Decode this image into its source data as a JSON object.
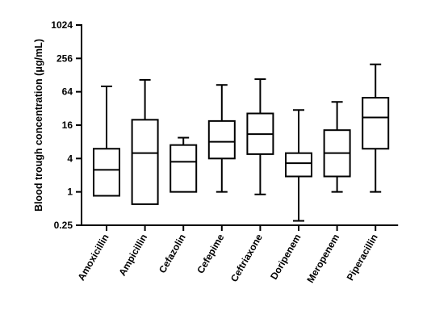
{
  "chart_data": {
    "type": "box",
    "title": "",
    "xlabel": "",
    "ylabel": "Blood trough concentration (μg/mL)",
    "yscale": "log2",
    "ylim": [
      0.25,
      1024
    ],
    "yticks": [
      0.25,
      1,
      4,
      16,
      64,
      256,
      1024
    ],
    "ytick_labels": [
      "0.25",
      "1",
      "4",
      "16",
      "64",
      "256",
      "1024"
    ],
    "grid": false,
    "legend": "none",
    "colors": {
      "stroke": "#000000",
      "fill": "#ffffff"
    },
    "categories": [
      "Amoxicillin",
      "Ampicillin",
      "Cefazolin",
      "Cefepime",
      "Ceftriaxone",
      "Doripenem",
      "Meropenem",
      "Piperacillin"
    ],
    "boxes": [
      {
        "min": 0.85,
        "q1": 0.85,
        "median": 2.5,
        "q3": 6,
        "max": 80
      },
      {
        "min": 0.6,
        "q1": 0.6,
        "median": 5,
        "q3": 20,
        "max": 105
      },
      {
        "min": 1,
        "q1": 1,
        "median": 3.5,
        "q3": 7,
        "max": 9.5
      },
      {
        "min": 1,
        "q1": 4,
        "median": 8,
        "q3": 19,
        "max": 85
      },
      {
        "min": 0.9,
        "q1": 4.8,
        "median": 11,
        "q3": 26,
        "max": 108
      },
      {
        "min": 0.3,
        "q1": 1.9,
        "median": 3.3,
        "q3": 5,
        "max": 30
      },
      {
        "min": 1,
        "q1": 1.9,
        "median": 5,
        "q3": 13,
        "max": 42
      },
      {
        "min": 1,
        "q1": 6,
        "median": 22,
        "q3": 50,
        "max": 200
      }
    ]
  }
}
